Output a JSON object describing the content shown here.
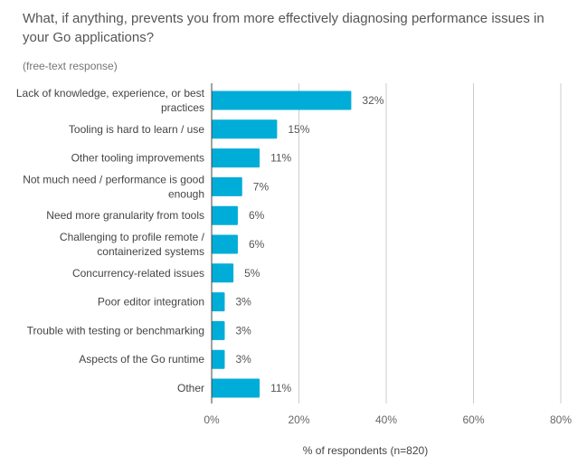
{
  "title": "What, if anything, prevents you from more effectively diagnosing performance issues in your Go applications?",
  "subtitle": "(free-text response)",
  "colors": {
    "bar": "#00ADD8",
    "grid": "#cccccc",
    "axis": "#444444"
  },
  "chart_data": {
    "type": "bar",
    "orientation": "horizontal",
    "categories": [
      [
        "Lack of knowledge, experience, or best",
        "practices"
      ],
      [
        "Tooling is hard to learn / use"
      ],
      [
        "Other tooling improvements"
      ],
      [
        "Not much need / performance is good",
        "enough"
      ],
      [
        "Need more granularity from tools"
      ],
      [
        "Challenging to profile remote /",
        "containerized systems"
      ],
      [
        "Concurrency-related issues"
      ],
      [
        "Poor editor integration"
      ],
      [
        "Trouble with testing or benchmarking"
      ],
      [
        "Aspects of the Go runtime"
      ],
      [
        "Other"
      ]
    ],
    "values": [
      32,
      15,
      11,
      7,
      6,
      6,
      5,
      3,
      3,
      3,
      11
    ],
    "value_labels": [
      "32%",
      "15%",
      "11%",
      "7%",
      "6%",
      "6%",
      "5%",
      "3%",
      "3%",
      "3%",
      "11%"
    ],
    "xlim": [
      0,
      80
    ],
    "xticks": [
      0,
      20,
      40,
      60,
      80
    ],
    "xtick_labels": [
      "0%",
      "20%",
      "40%",
      "60%",
      "80%"
    ],
    "xlabel": "% of respondents (n=820)",
    "grid": true
  }
}
